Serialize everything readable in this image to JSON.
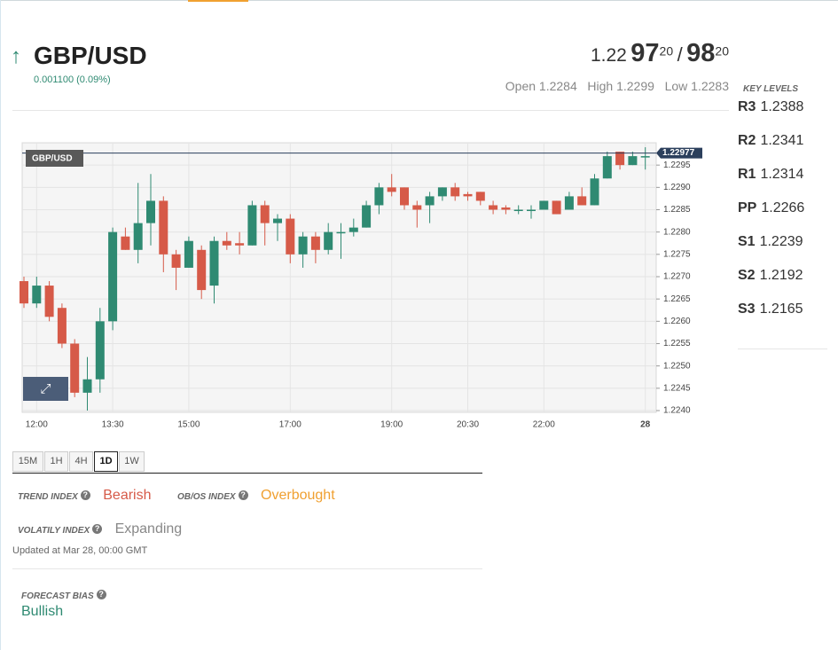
{
  "header": {
    "symbol": "GBP/USD",
    "change": "0.001100 (0.09%)",
    "quote": {
      "bid_big": "1.22",
      "bid_pips": "97",
      "bid_fraction": "20",
      "separator": "/",
      "ask_pips": "98",
      "ask_fraction": "20"
    },
    "open": "Open 1.2284",
    "high": "High 1.2299",
    "low": "Low 1.2283"
  },
  "key_levels": {
    "title": "KEY LEVELS",
    "levels": [
      {
        "name": "R3",
        "value": "1.2388"
      },
      {
        "name": "R2",
        "value": "1.2341"
      },
      {
        "name": "R1",
        "value": "1.2314"
      },
      {
        "name": "PP",
        "value": "1.2266"
      },
      {
        "name": "S1",
        "value": "1.2239"
      },
      {
        "name": "S2",
        "value": "1.2192"
      },
      {
        "name": "S3",
        "value": "1.2165"
      }
    ]
  },
  "timeframes": {
    "options": [
      "15M",
      "1H",
      "4H",
      "1D",
      "1W"
    ],
    "selected": 3
  },
  "indices": {
    "trend": {
      "label": "TREND INDEX",
      "value": "Bearish"
    },
    "obos": {
      "label": "OB/OS INDEX",
      "value": "Overbought"
    },
    "volatility": {
      "label": "VOLATILY INDEX",
      "value": "Expanding"
    },
    "updated": "Updated at Mar 28, 00:00 GMT"
  },
  "forecast": {
    "label": "FORECAST BIAS",
    "value": "Bullish"
  },
  "chart_data": {
    "type": "candlestick",
    "title": "GBP/USD",
    "categories": [
      null,
      "12:00",
      null,
      null,
      null,
      null,
      null,
      "13:30",
      null,
      null,
      null,
      null,
      null,
      "15:00",
      null,
      null,
      null,
      null,
      null,
      null,
      null,
      "17:00",
      null,
      null,
      null,
      null,
      null,
      null,
      null,
      "19:00",
      null,
      null,
      null,
      null,
      null,
      "20:30",
      null,
      null,
      null,
      null,
      null,
      "22:00",
      null,
      null,
      null,
      null,
      null,
      null,
      null,
      "28"
    ],
    "open": [
      1.2269,
      1.2264,
      1.2268,
      1.2263,
      1.2255,
      1.2244,
      1.2247,
      1.226,
      1.2279,
      1.2276,
      1.2282,
      1.2287,
      1.2275,
      1.2272,
      1.2276,
      1.2268,
      1.2278,
      1.22775,
      1.2277,
      1.2286,
      1.2282,
      1.2283,
      1.2275,
      1.2279,
      1.2276,
      1.228,
      1.228,
      1.2281,
      1.2286,
      1.229,
      1.229,
      1.2286,
      1.2286,
      1.2288,
      1.229,
      1.22885,
      1.2289,
      1.2286,
      1.22855,
      1.2285,
      1.2285,
      1.2285,
      1.2287,
      1.2285,
      1.2288,
      1.2286,
      1.2292,
      1.2298,
      1.2295,
      1.2297
    ],
    "high": [
      1.227,
      1.227,
      1.2269,
      1.2264,
      1.2256,
      1.2252,
      1.2263,
      1.2281,
      1.2281,
      1.2291,
      1.2293,
      1.2288,
      1.2276,
      1.2279,
      1.2277,
      1.2279,
      1.228,
      1.228,
      1.2287,
      1.2287,
      1.2284,
      1.2284,
      1.228,
      1.228,
      1.2282,
      1.2282,
      1.2283,
      1.2287,
      1.2291,
      1.2293,
      1.229,
      1.2287,
      1.2289,
      1.229,
      1.2291,
      1.2289,
      1.2289,
      1.2287,
      1.2286,
      1.2286,
      1.2286,
      1.2287,
      1.2287,
      1.2289,
      1.229,
      1.2293,
      1.2298,
      1.2298,
      1.2298,
      1.2299
    ],
    "low": [
      1.2263,
      1.2263,
      1.226,
      1.2254,
      1.2243,
      1.224,
      1.2244,
      1.2258,
      1.2276,
      1.2273,
      1.2277,
      1.2271,
      1.2267,
      1.2272,
      1.2265,
      1.2264,
      1.2276,
      1.2275,
      1.2277,
      1.2277,
      1.2278,
      1.2273,
      1.2272,
      1.2273,
      1.2275,
      1.2274,
      1.2279,
      1.2281,
      1.2284,
      1.2288,
      1.2285,
      1.2281,
      1.2282,
      1.2287,
      1.2287,
      1.2287,
      1.2286,
      1.2284,
      1.2284,
      1.2284,
      1.2283,
      1.2285,
      1.2284,
      1.2285,
      1.2286,
      1.2286,
      1.2292,
      1.2294,
      1.2295,
      1.2294
    ],
    "close": [
      1.2264,
      1.2268,
      1.2261,
      1.2255,
      1.2244,
      1.2247,
      1.226,
      1.228,
      1.2276,
      1.2282,
      1.2287,
      1.2275,
      1.2272,
      1.2278,
      1.2267,
      1.2278,
      1.2277,
      1.2277,
      1.2286,
      1.2282,
      1.2283,
      1.2275,
      1.2279,
      1.2276,
      1.228,
      1.228,
      1.2281,
      1.2286,
      1.229,
      1.2289,
      1.2286,
      1.2285,
      1.2288,
      1.229,
      1.2288,
      1.2288,
      1.2287,
      1.2285,
      1.2285,
      1.2285,
      1.2285,
      1.2287,
      1.2284,
      1.2288,
      1.2286,
      1.2292,
      1.2297,
      1.2295,
      1.2297,
      1.2297
    ],
    "up_color": "#2f8a72",
    "down_color": "#d65a48",
    "last_price": 1.22977,
    "last_price_color": "#2b3f5c",
    "ylim": [
      1.22396,
      1.23
    ],
    "yticks": [
      {
        "value": 1.224,
        "label": "1.2240"
      },
      1.2245,
      {
        "value": 1.225,
        "label": "1.2250"
      },
      1.2255,
      {
        "value": 1.226,
        "label": "1.2260"
      },
      1.2265,
      {
        "value": 1.227,
        "label": "1.2270"
      },
      1.2275,
      {
        "value": 1.228,
        "label": "1.2280"
      },
      1.2285,
      {
        "value": 1.229,
        "label": "1.2290"
      },
      1.2295
    ],
    "grid": true
  }
}
